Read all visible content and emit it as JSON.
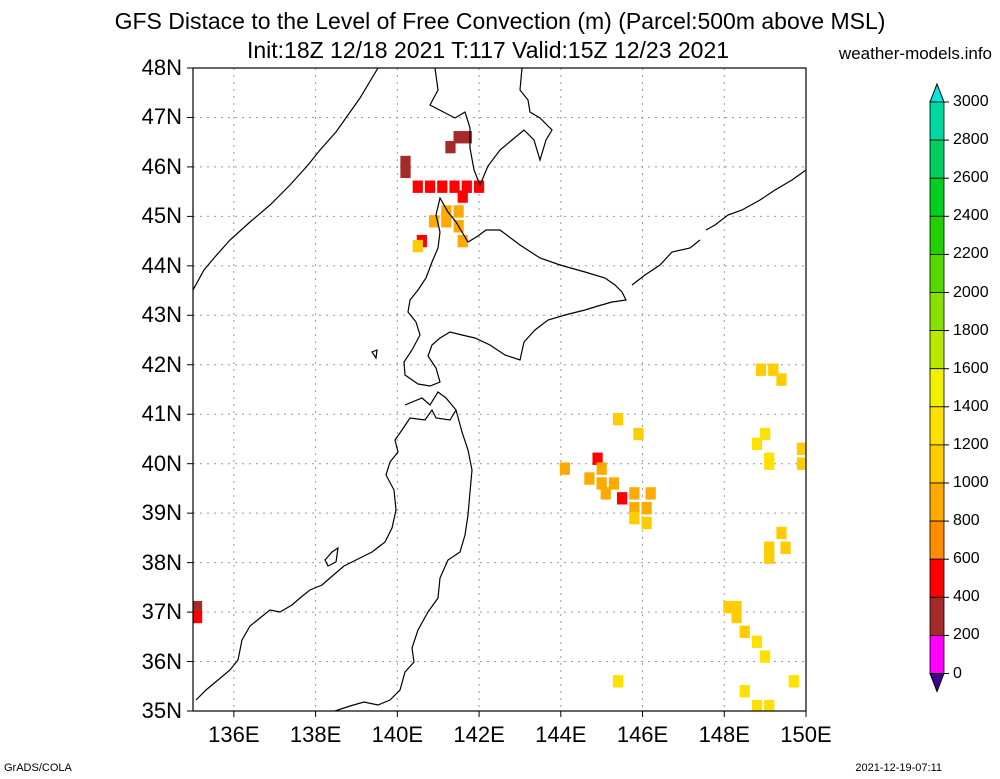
{
  "title": {
    "line1": "GFS Distace to the Level of Free Convection (m) (Parcel:500m above MSL)",
    "line2": "Init:18Z 12/18 2021 T:117 Valid:15Z 12/23 2021",
    "site": "weather-models.info"
  },
  "footer": {
    "left": "GrADS/COLA",
    "right": "2021-12-19-07:11"
  },
  "lat_labels": [
    "48N",
    "47N",
    "46N",
    "45N",
    "44N",
    "43N",
    "42N",
    "41N",
    "40N",
    "39N",
    "38N",
    "37N",
    "36N",
    "35N"
  ],
  "lon_labels": [
    "136E",
    "138E",
    "140E",
    "142E",
    "144E",
    "146E",
    "148E",
    "150E"
  ],
  "colorbar": {
    "labels": [
      "3000",
      "2800",
      "2600",
      "2400",
      "2200",
      "2000",
      "1800",
      "1600",
      "1400",
      "1200",
      "1000",
      "800",
      "600",
      "400",
      "200",
      "0"
    ],
    "colors": [
      "#00e8e0",
      "#00d8a0",
      "#00d060",
      "#00cf20",
      "#22d000",
      "#55d800",
      "#88e000",
      "#bbe800",
      "#f0f000",
      "#ffe000",
      "#ffcc00",
      "#ffaa00",
      "#ff8c00",
      "#ff0000",
      "#a52a2a",
      "#ff00ff",
      "#440088"
    ]
  },
  "map": {
    "lon_range": [
      135,
      150
    ],
    "lat_range": [
      35,
      48
    ],
    "grid_step_lon": 2,
    "grid_step_lat": 1,
    "cells": [
      {
        "lon": 141.7,
        "lat": 46.6,
        "c": "#a52a2a"
      },
      {
        "lon": 141.5,
        "lat": 46.6,
        "c": "#a52a2a"
      },
      {
        "lon": 141.3,
        "lat": 46.4,
        "c": "#a52a2a"
      },
      {
        "lon": 140.2,
        "lat": 46.1,
        "c": "#a52a2a"
      },
      {
        "lon": 140.2,
        "lat": 45.9,
        "c": "#a52a2a"
      },
      {
        "lon": 140.5,
        "lat": 45.6,
        "c": "#ff0000"
      },
      {
        "lon": 140.8,
        "lat": 45.6,
        "c": "#ff0000"
      },
      {
        "lon": 141.1,
        "lat": 45.6,
        "c": "#ff0000"
      },
      {
        "lon": 141.4,
        "lat": 45.6,
        "c": "#ff0000"
      },
      {
        "lon": 141.7,
        "lat": 45.6,
        "c": "#ff0000"
      },
      {
        "lon": 142.0,
        "lat": 45.6,
        "c": "#ff0000"
      },
      {
        "lon": 141.6,
        "lat": 45.4,
        "c": "#ff0000"
      },
      {
        "lon": 141.2,
        "lat": 45.1,
        "c": "#ffaa00"
      },
      {
        "lon": 141.5,
        "lat": 45.1,
        "c": "#ffaa00"
      },
      {
        "lon": 140.9,
        "lat": 44.9,
        "c": "#ffaa00"
      },
      {
        "lon": 141.2,
        "lat": 44.9,
        "c": "#ffaa00"
      },
      {
        "lon": 141.5,
        "lat": 44.8,
        "c": "#ffaa00"
      },
      {
        "lon": 141.6,
        "lat": 44.5,
        "c": "#ffaa00"
      },
      {
        "lon": 140.6,
        "lat": 44.5,
        "c": "#ff0000"
      },
      {
        "lon": 140.5,
        "lat": 44.4,
        "c": "#ffcc00"
      },
      {
        "lon": 149.2,
        "lat": 41.9,
        "c": "#ffcc00"
      },
      {
        "lon": 148.9,
        "lat": 41.9,
        "c": "#ffcc00"
      },
      {
        "lon": 149.4,
        "lat": 41.7,
        "c": "#ffcc00"
      },
      {
        "lon": 145.4,
        "lat": 40.9,
        "c": "#ffcc00"
      },
      {
        "lon": 145.9,
        "lat": 40.6,
        "c": "#ffcc00"
      },
      {
        "lon": 149.0,
        "lat": 40.6,
        "c": "#ffe000"
      },
      {
        "lon": 148.8,
        "lat": 40.4,
        "c": "#ffe000"
      },
      {
        "lon": 149.1,
        "lat": 40.1,
        "c": "#ffe000"
      },
      {
        "lon": 149.1,
        "lat": 40.0,
        "c": "#ffe000"
      },
      {
        "lon": 149.9,
        "lat": 40.3,
        "c": "#ffcc00"
      },
      {
        "lon": 149.9,
        "lat": 40.0,
        "c": "#ffcc00"
      },
      {
        "lon": 144.1,
        "lat": 39.9,
        "c": "#ffaa00"
      },
      {
        "lon": 144.9,
        "lat": 40.1,
        "c": "#ff0000"
      },
      {
        "lon": 145.0,
        "lat": 39.9,
        "c": "#ffaa00"
      },
      {
        "lon": 144.7,
        "lat": 39.7,
        "c": "#ffaa00"
      },
      {
        "lon": 145.0,
        "lat": 39.6,
        "c": "#ffaa00"
      },
      {
        "lon": 145.3,
        "lat": 39.6,
        "c": "#ffaa00"
      },
      {
        "lon": 145.1,
        "lat": 39.4,
        "c": "#ffaa00"
      },
      {
        "lon": 145.8,
        "lat": 39.4,
        "c": "#ffaa00"
      },
      {
        "lon": 146.2,
        "lat": 39.4,
        "c": "#ffaa00"
      },
      {
        "lon": 145.5,
        "lat": 39.3,
        "c": "#ff0000"
      },
      {
        "lon": 145.8,
        "lat": 39.1,
        "c": "#ffaa00"
      },
      {
        "lon": 146.1,
        "lat": 39.1,
        "c": "#ffaa00"
      },
      {
        "lon": 145.8,
        "lat": 38.9,
        "c": "#ffcc00"
      },
      {
        "lon": 146.1,
        "lat": 38.8,
        "c": "#ffcc00"
      },
      {
        "lon": 149.4,
        "lat": 38.6,
        "c": "#ffcc00"
      },
      {
        "lon": 149.5,
        "lat": 38.3,
        "c": "#ffcc00"
      },
      {
        "lon": 149.1,
        "lat": 38.3,
        "c": "#ffcc00"
      },
      {
        "lon": 149.1,
        "lat": 38.1,
        "c": "#ffcc00"
      },
      {
        "lon": 135.1,
        "lat": 37.1,
        "c": "#a52a2a"
      },
      {
        "lon": 135.1,
        "lat": 36.9,
        "c": "#ff0000"
      },
      {
        "lon": 148.1,
        "lat": 37.1,
        "c": "#ffcc00"
      },
      {
        "lon": 148.3,
        "lat": 37.1,
        "c": "#ffcc00"
      },
      {
        "lon": 148.3,
        "lat": 36.9,
        "c": "#ffcc00"
      },
      {
        "lon": 148.5,
        "lat": 36.6,
        "c": "#ffcc00"
      },
      {
        "lon": 148.8,
        "lat": 36.4,
        "c": "#ffe000"
      },
      {
        "lon": 149.0,
        "lat": 36.1,
        "c": "#ffe000"
      },
      {
        "lon": 145.4,
        "lat": 35.6,
        "c": "#ffe000"
      },
      {
        "lon": 149.7,
        "lat": 35.6,
        "c": "#ffe000"
      },
      {
        "lon": 148.5,
        "lat": 35.4,
        "c": "#ffe000"
      },
      {
        "lon": 148.8,
        "lat": 35.1,
        "c": "#ffe000"
      },
      {
        "lon": 149.1,
        "lat": 35.1,
        "c": "#ffe000"
      }
    ]
  }
}
